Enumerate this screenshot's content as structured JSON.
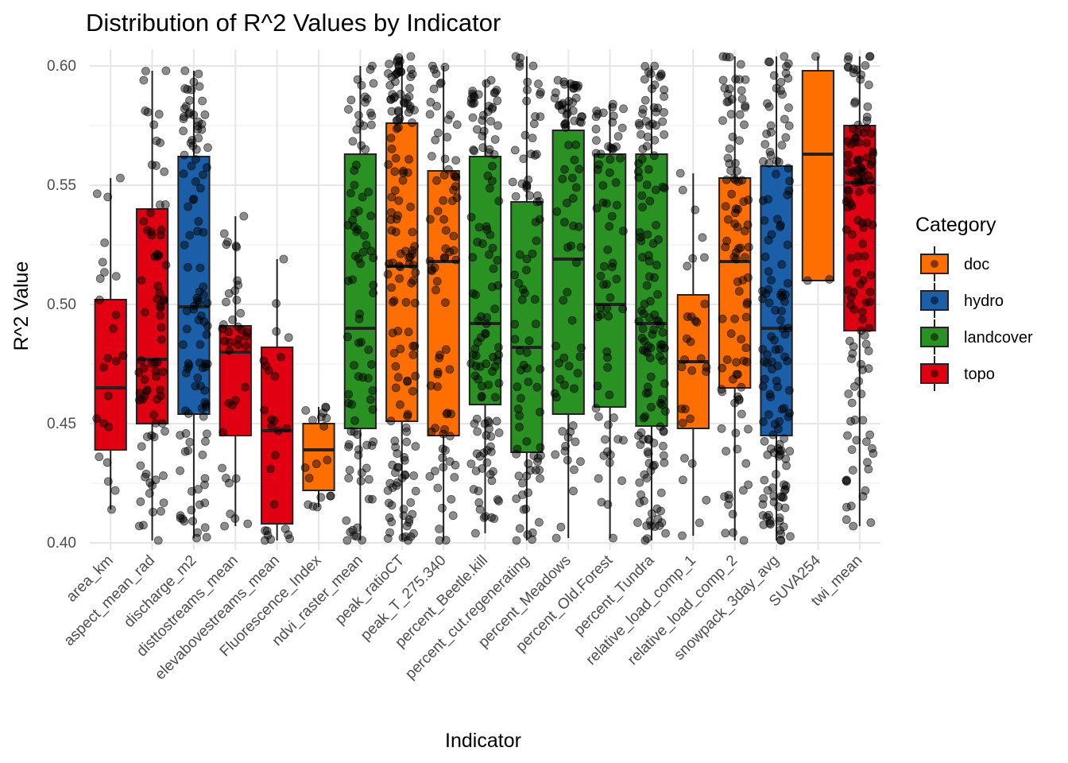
{
  "chart_data": {
    "type": "box",
    "title": "Distribution of R^2 Values by Indicator",
    "xlabel": "Indicator",
    "ylabel": "R^2 Value",
    "ylim": [
      0.397,
      0.607
    ],
    "yticks": [
      0.4,
      0.45,
      0.5,
      0.55,
      0.6
    ],
    "ytick_labels": [
      "0.40",
      "0.45",
      "0.50",
      "0.55",
      "0.60"
    ],
    "grid": true,
    "legend": {
      "title": "Category",
      "position": "right",
      "entries": [
        {
          "name": "doc",
          "color": "#FF6F00"
        },
        {
          "name": "hydro",
          "color": "#1B5FA8"
        },
        {
          "name": "landcover",
          "color": "#2A9223"
        },
        {
          "name": "topo",
          "color": "#E00012"
        }
      ]
    },
    "categories": [
      "area_km",
      "aspect_mean_rad",
      "discharge_m2",
      "disttostreams_mean",
      "elevabovestreams_mean",
      "Fluorescence_Index",
      "ndvi_raster_mean",
      "peak_ratioCT",
      "peak_T_275.340",
      "percent_Beetle.kill",
      "percent_cut.regenerating",
      "percent_Meadows",
      "percent_Old.Forest",
      "percent_Tundra",
      "relative_load_comp_1",
      "relative_load_comp_2",
      "snowpack_3day_avg",
      "SUVA254",
      "twi_mean"
    ],
    "boxes": [
      {
        "indicator": "area_km",
        "category": "topo",
        "whisker_low": 0.414,
        "q1": 0.439,
        "median": 0.465,
        "q3": 0.502,
        "whisker_high": 0.553,
        "points": 24
      },
      {
        "indicator": "aspect_mean_rad",
        "category": "topo",
        "whisker_low": 0.401,
        "q1": 0.45,
        "median": 0.477,
        "q3": 0.54,
        "whisker_high": 0.598,
        "points": 80
      },
      {
        "indicator": "discharge_m2",
        "category": "hydro",
        "whisker_low": 0.402,
        "q1": 0.454,
        "median": 0.499,
        "q3": 0.562,
        "whisker_high": 0.598,
        "points": 110
      },
      {
        "indicator": "disttostreams_mean",
        "category": "topo",
        "whisker_low": 0.407,
        "q1": 0.445,
        "median": 0.48,
        "q3": 0.491,
        "whisker_high": 0.537,
        "points": 40
      },
      {
        "indicator": "elevabovestreams_mean",
        "category": "topo",
        "whisker_low": 0.401,
        "q1": 0.408,
        "median": 0.447,
        "q3": 0.482,
        "whisker_high": 0.519,
        "points": 26
      },
      {
        "indicator": "Fluorescence_Index",
        "category": "doc",
        "whisker_low": 0.415,
        "q1": 0.422,
        "median": 0.439,
        "q3": 0.45,
        "whisker_high": 0.457,
        "points": 18
      },
      {
        "indicator": "ndvi_raster_mean",
        "category": "landcover",
        "whisker_low": 0.401,
        "q1": 0.448,
        "median": 0.49,
        "q3": 0.563,
        "whisker_high": 0.6,
        "points": 90
      },
      {
        "indicator": "peak_ratioCT",
        "category": "doc",
        "whisker_low": 0.401,
        "q1": 0.451,
        "median": 0.516,
        "q3": 0.576,
        "whisker_high": 0.604,
        "points": 150
      },
      {
        "indicator": "peak_T_275.340",
        "category": "doc",
        "whisker_low": 0.401,
        "q1": 0.445,
        "median": 0.518,
        "q3": 0.556,
        "whisker_high": 0.6,
        "points": 80
      },
      {
        "indicator": "percent_Beetle.kill",
        "category": "landcover",
        "whisker_low": 0.404,
        "q1": 0.458,
        "median": 0.492,
        "q3": 0.562,
        "whisker_high": 0.594,
        "points": 120
      },
      {
        "indicator": "percent_cut.regenerating",
        "category": "landcover",
        "whisker_low": 0.401,
        "q1": 0.438,
        "median": 0.482,
        "q3": 0.543,
        "whisker_high": 0.604,
        "points": 90
      },
      {
        "indicator": "percent_Meadows",
        "category": "landcover",
        "whisker_low": 0.402,
        "q1": 0.454,
        "median": 0.519,
        "q3": 0.573,
        "whisker_high": 0.594,
        "points": 80
      },
      {
        "indicator": "percent_Old.Forest",
        "category": "landcover",
        "whisker_low": 0.402,
        "q1": 0.457,
        "median": 0.5,
        "q3": 0.563,
        "whisker_high": 0.584,
        "points": 70
      },
      {
        "indicator": "percent_Tundra",
        "category": "landcover",
        "whisker_low": 0.401,
        "q1": 0.449,
        "median": 0.492,
        "q3": 0.563,
        "whisker_high": 0.6,
        "points": 140
      },
      {
        "indicator": "relative_load_comp_1",
        "category": "doc",
        "whisker_low": 0.403,
        "q1": 0.448,
        "median": 0.476,
        "q3": 0.504,
        "whisker_high": 0.555,
        "points": 30
      },
      {
        "indicator": "relative_load_comp_2",
        "category": "doc",
        "whisker_low": 0.401,
        "q1": 0.465,
        "median": 0.518,
        "q3": 0.553,
        "whisker_high": 0.604,
        "points": 100
      },
      {
        "indicator": "snowpack_3day_avg",
        "category": "hydro",
        "whisker_low": 0.401,
        "q1": 0.445,
        "median": 0.49,
        "q3": 0.558,
        "whisker_high": 0.604,
        "points": 140
      },
      {
        "indicator": "SUVA254",
        "category": "doc",
        "whisker_low": 0.51,
        "q1": 0.51,
        "median": 0.563,
        "q3": 0.598,
        "whisker_high": 0.604,
        "points": 3
      },
      {
        "indicator": "twi_mean",
        "category": "topo",
        "whisker_low": 0.407,
        "q1": 0.489,
        "median": 0.551,
        "q3": 0.575,
        "whisker_high": 0.604,
        "points": 130
      }
    ]
  }
}
